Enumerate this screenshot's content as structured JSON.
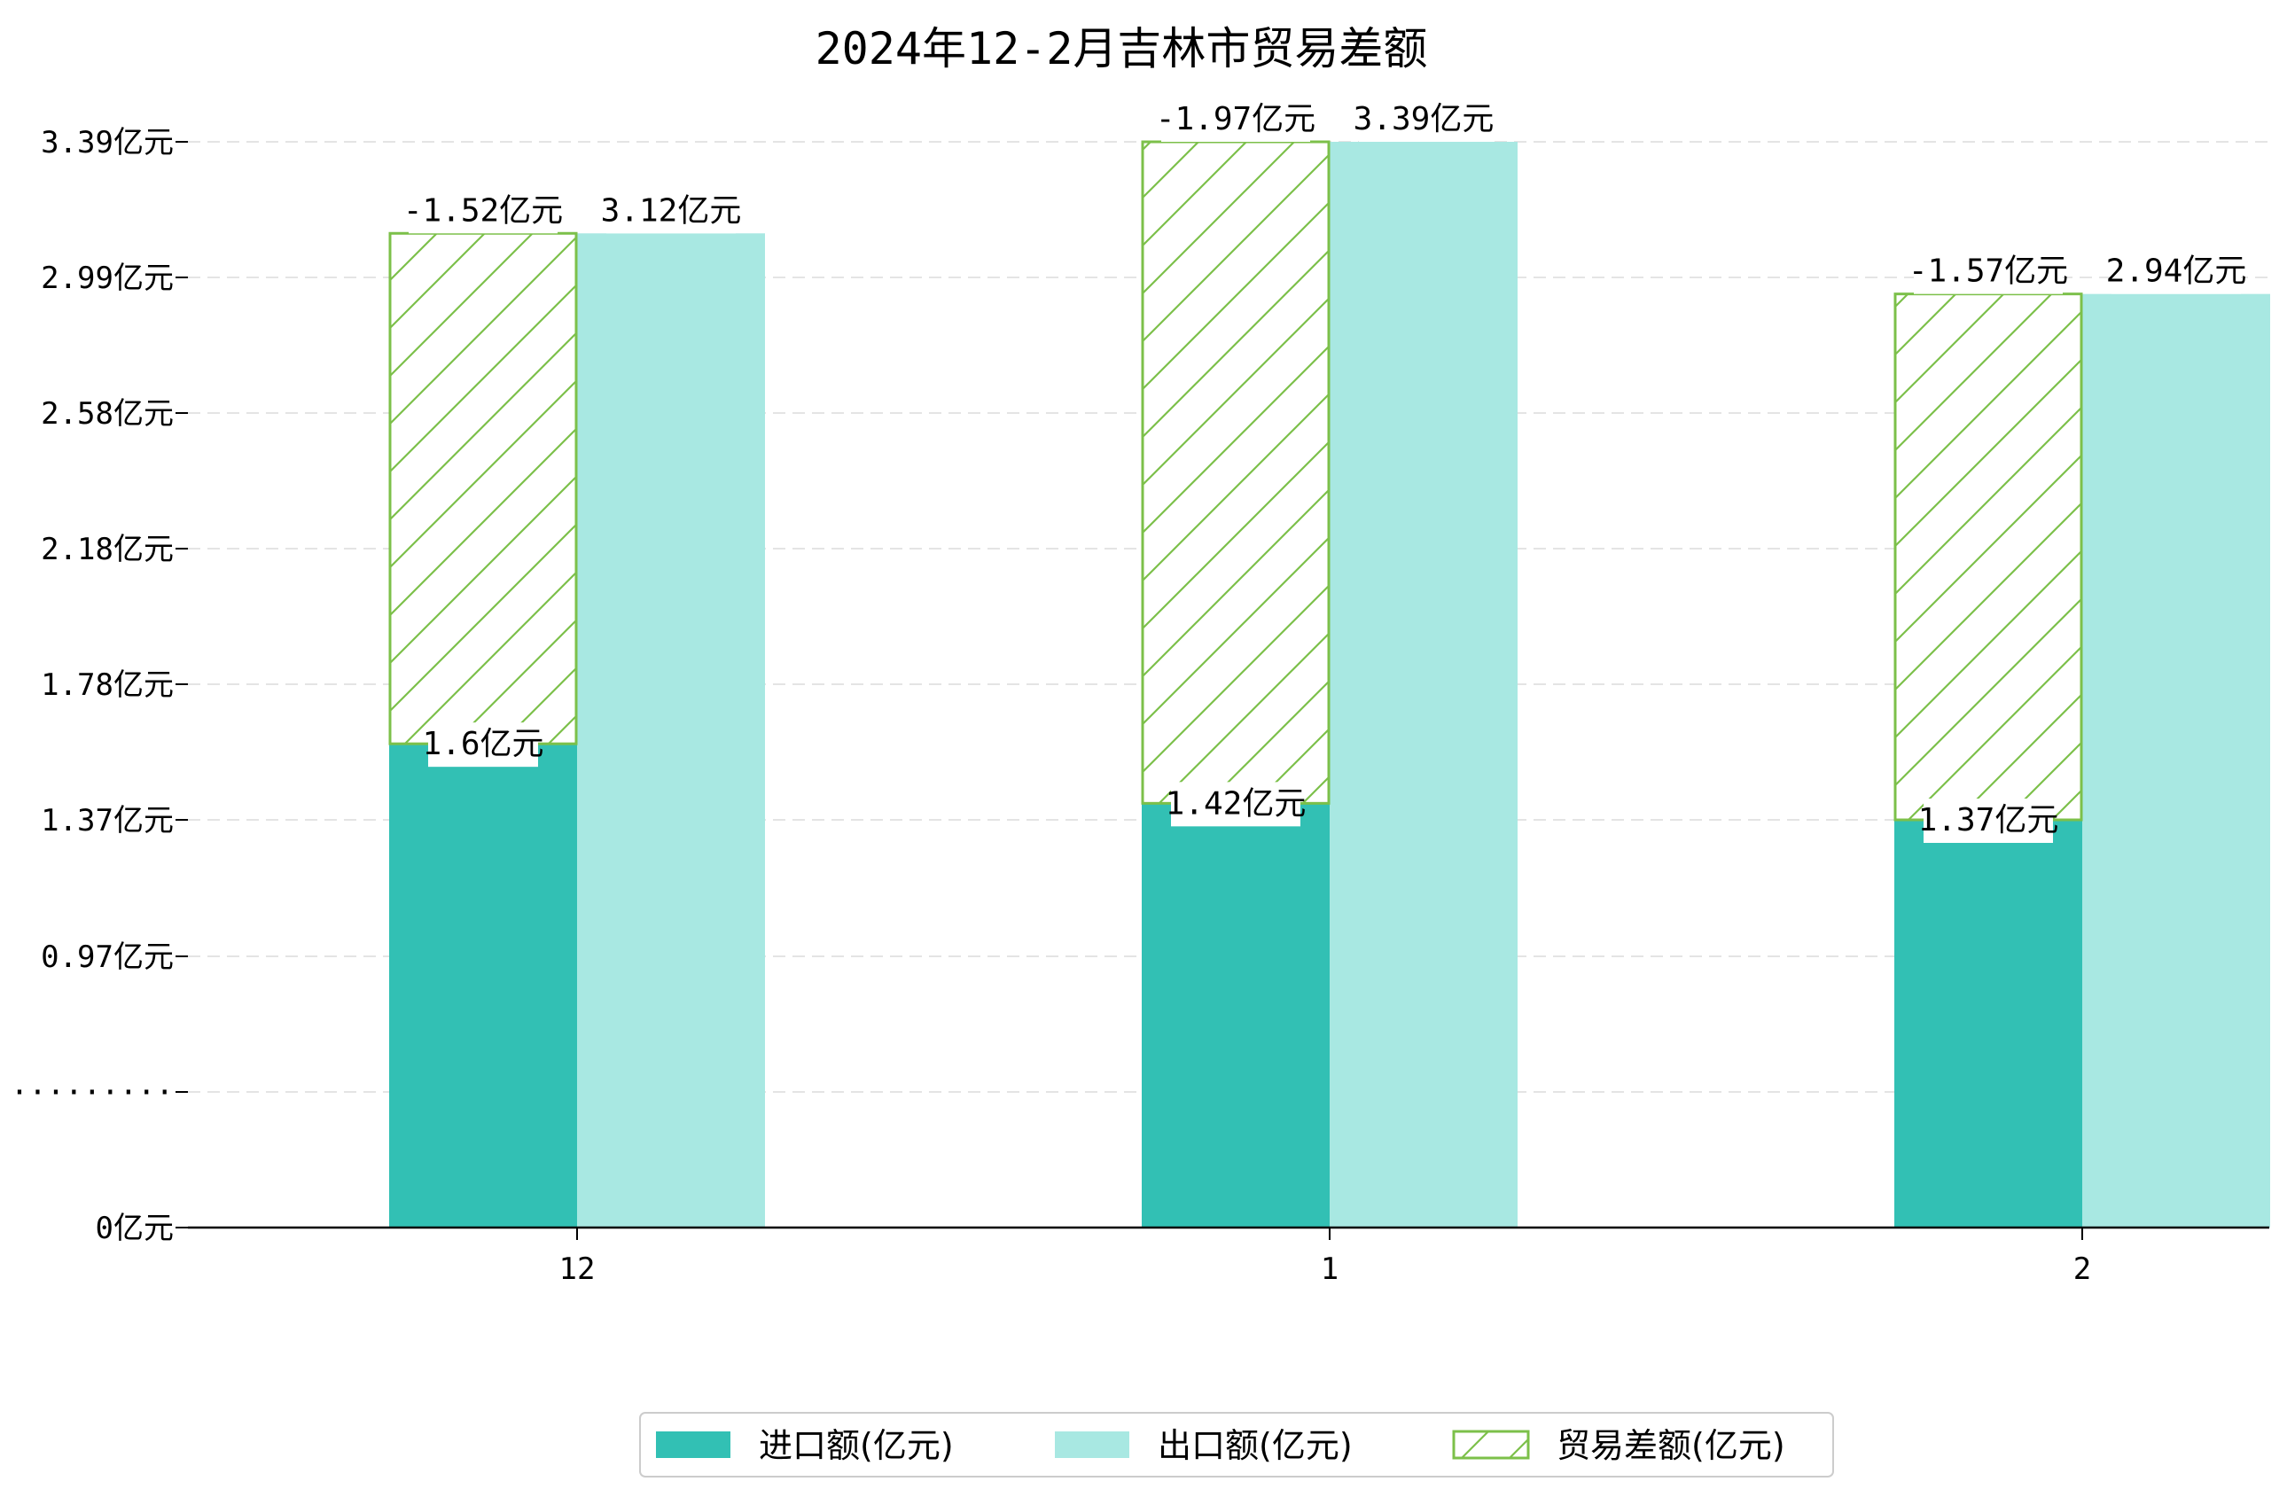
{
  "chart_data": {
    "type": "bar",
    "title": "2024年12-2月吉林市贸易差额",
    "categories": [
      "12",
      "1",
      "2"
    ],
    "series": [
      {
        "name": "进口额(亿元)",
        "values": [
          1.6,
          1.42,
          1.37
        ],
        "labels": [
          "1.6亿元",
          "1.42亿元",
          "1.37亿元"
        ],
        "color": "#32c0b4"
      },
      {
        "name": "出口额(亿元)",
        "values": [
          3.12,
          3.39,
          2.94
        ],
        "labels": [
          "3.12亿元",
          "3.39亿元",
          "2.94亿元"
        ],
        "color": "#a8e8e2"
      },
      {
        "name": "贸易差额(亿元)",
        "values": [
          -1.52,
          -1.97,
          -1.57
        ],
        "labels": [
          "-1.52亿元",
          "-1.97亿元",
          "-1.57亿元"
        ],
        "color": "#7cc04a"
      }
    ],
    "y_ticks": [
      {
        "label": "0亿元",
        "value": 0
      },
      {
        "label": "·········",
        "value": 0.4
      },
      {
        "label": "0.97亿元",
        "value": 0.97
      },
      {
        "label": "1.37亿元",
        "value": 1.37
      },
      {
        "label": "1.78亿元",
        "value": 1.78
      },
      {
        "label": "2.18亿元",
        "value": 2.18
      },
      {
        "label": "2.58亿元",
        "value": 2.58
      },
      {
        "label": "2.99亿元",
        "value": 2.99
      },
      {
        "label": "3.39亿元",
        "value": 3.39
      }
    ],
    "grid": true,
    "legend_position": "bottom-center",
    "xlabel": "",
    "ylabel": ""
  }
}
